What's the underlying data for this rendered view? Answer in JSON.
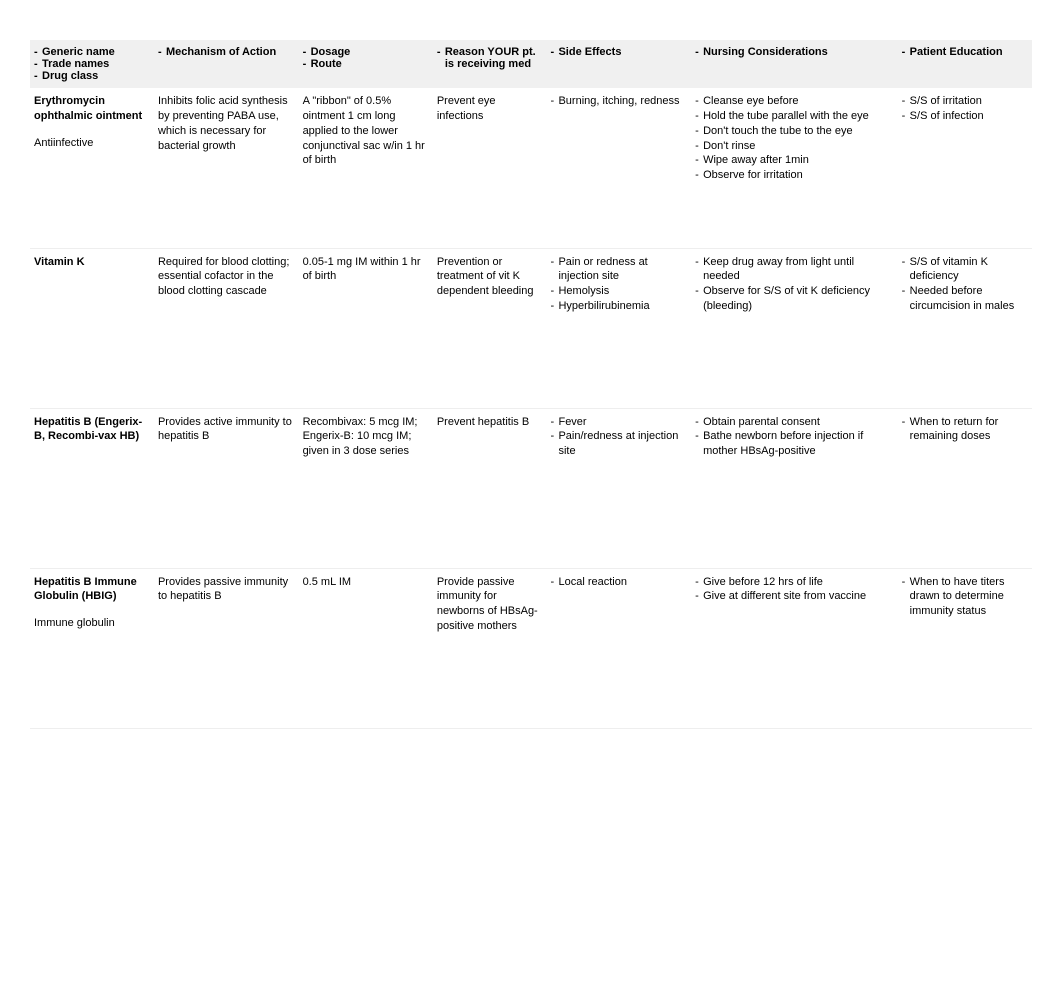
{
  "headers": {
    "generic": [
      "Generic name",
      "Trade names",
      "Drug class"
    ],
    "moa": [
      "Mechanism of Action"
    ],
    "dose": [
      "Dosage",
      "Route"
    ],
    "reason": [
      "Reason YOUR pt. is receiving med"
    ],
    "side": [
      "Side Effects"
    ],
    "nursing": [
      "Nursing Considerations"
    ],
    "edu": [
      "Patient Education"
    ]
  },
  "rows": [
    {
      "name": "Erythromycin ophthalmic ointment",
      "class": "Antiinfective",
      "moa": "Inhibits folic acid synthesis by preventing PABA use, which is necessary for bacterial growth",
      "dose": "A \"ribbon\" of 0.5% ointment 1 cm long applied to the lower conjunctival sac w/in 1 hr of birth",
      "reason": "Prevent eye infections",
      "side": [
        "Burning, itching, redness"
      ],
      "nursing": [
        "Cleanse eye before",
        "Hold the tube parallel with the eye",
        "Don't touch the tube to the eye",
        "Don't rinse",
        "Wipe away after 1min",
        "Observe for irritation"
      ],
      "edu": [
        "S/S of irritation",
        "S/S of infection"
      ]
    },
    {
      "name": "Vitamin K",
      "class": "",
      "moa": "Required for blood clotting; essential cofactor in the blood clotting cascade",
      "dose": "0.05-1 mg IM within 1 hr of birth",
      "reason": "Prevention or treatment of vit K dependent bleeding",
      "side": [
        "Pain or redness at injection site",
        "Hemolysis",
        "Hyperbilirubinemia"
      ],
      "nursing": [
        "Keep drug away from light until needed",
        "Observe for S/S of vit K deficiency (bleeding)"
      ],
      "edu": [
        "S/S of vitamin K deficiency",
        "Needed before circumcision in males"
      ]
    },
    {
      "name": "Hepatitis B (Engerix-B, Recombi-vax HB)",
      "class": "",
      "moa": "Provides active immunity to hepatitis B",
      "dose": "Recombivax: 5 mcg IM; Engerix-B: 10 mcg IM; given in 3 dose series",
      "reason": "Prevent hepatitis B",
      "side": [
        "Fever",
        "Pain/redness at injection site"
      ],
      "nursing": [
        "Obtain parental consent",
        "Bathe newborn before injection if mother HBsAg-positive"
      ],
      "edu": [
        "When to return for remaining doses"
      ]
    },
    {
      "name": "Hepatitis B Immune Globulin (HBIG)",
      "class": "Immune globulin",
      "moa": "Provides passive immunity to hepatitis B",
      "dose": "0.5 mL IM",
      "reason": "Provide passive immunity for newborns of HBsAg-positive mothers",
      "side": [
        "Local reaction"
      ],
      "nursing": [
        "Give before 12 hrs of life",
        "Give at different site from vaccine"
      ],
      "edu": [
        "When to have titers drawn to determine immunity status"
      ]
    }
  ]
}
